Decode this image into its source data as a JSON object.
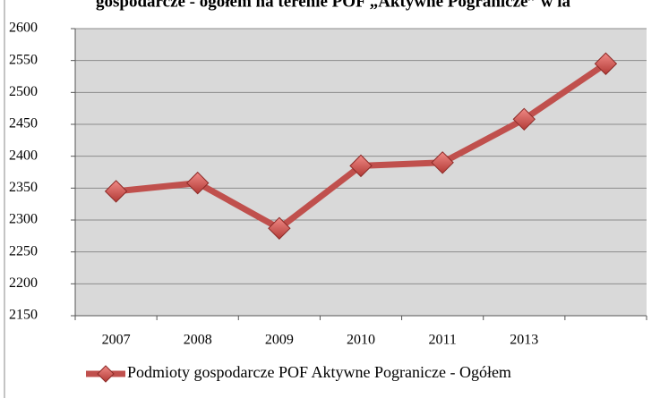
{
  "chart_data": {
    "type": "line",
    "title": "gospodarcze - ogółem na terenie POF „Aktywne Pogranicze” w la",
    "categories": [
      "2007",
      "2008",
      "2009",
      "2010",
      "2011",
      "2013",
      null
    ],
    "series": [
      {
        "name": "Podmioty gospodarcze POF Aktywne Pogranicze - Ogółem",
        "color": "#c0504d",
        "values": [
          2345,
          2358,
          2287,
          2385,
          2390,
          2458,
          2545
        ]
      }
    ],
    "ylim": [
      2150,
      2600
    ],
    "yticks": [
      2150,
      2200,
      2250,
      2300,
      2350,
      2400,
      2450,
      2500,
      2550,
      2600
    ],
    "grid": true,
    "legend": "bottom"
  }
}
